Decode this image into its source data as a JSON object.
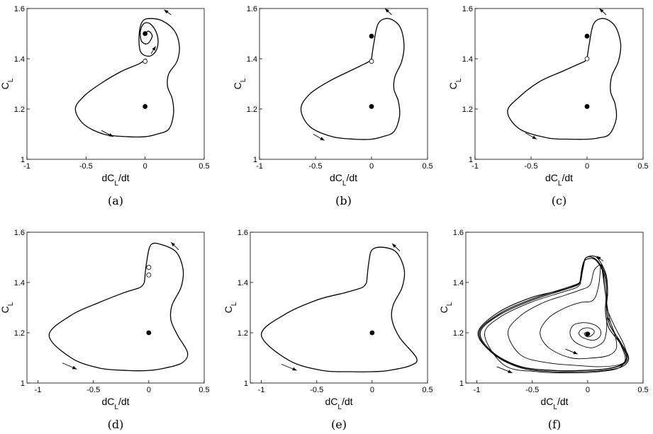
{
  "chart_data": [
    {
      "id": "a",
      "type": "line",
      "caption": "(a)",
      "xlabel": "dC",
      "xlabel_sub": "L",
      "xlabel_tail": "/dt",
      "ylabel": "C",
      "ylabel_sub": "L",
      "xlim": [
        -1,
        0.5
      ],
      "ylim": [
        1,
        1.6
      ],
      "xticks": [
        -1,
        -0.5,
        0,
        0.5
      ],
      "xtick_labels": [
        "-1",
        "-0.5",
        "0",
        "0.5"
      ],
      "yticks": [
        1,
        1.2,
        1.4,
        1.6
      ],
      "ytick_labels": [
        "1",
        "1.2",
        "1.4",
        "1.6"
      ],
      "series": [
        {
          "x": [
            0.0,
            0.03,
            0.06,
            0.02,
            -0.03,
            -0.04,
            -0.01,
            0.04,
            0.09,
            0.11,
            0.09,
            0.03,
            -0.04,
            -0.05,
            -0.02,
            0.05,
            0.15,
            0.25,
            0.29,
            0.27,
            0.2,
            0.19,
            0.23,
            0.24,
            0.2,
            0.1,
            0.0,
            -0.15,
            -0.35,
            -0.52,
            -0.59,
            -0.52,
            -0.38,
            -0.2,
            -0.05,
            0.01
          ],
          "y": [
            1.5,
            1.51,
            1.49,
            1.46,
            1.47,
            1.51,
            1.54,
            1.54,
            1.51,
            1.47,
            1.43,
            1.41,
            1.43,
            1.5,
            1.55,
            1.56,
            1.55,
            1.51,
            1.45,
            1.39,
            1.34,
            1.29,
            1.24,
            1.18,
            1.12,
            1.1,
            1.09,
            1.09,
            1.1,
            1.14,
            1.2,
            1.25,
            1.3,
            1.35,
            1.38,
            1.4
          ],
          "width": 1.3
        }
      ],
      "fixed_points": [
        {
          "x": 0,
          "y": 1.5,
          "filled": true
        },
        {
          "x": 0,
          "y": 1.39,
          "filled": false
        },
        {
          "x": 0,
          "y": 1.21,
          "filled": true
        }
      ],
      "arrows": [
        {
          "x1": -0.37,
          "y1": 1.115,
          "x2": -0.27,
          "y2": 1.09
        },
        {
          "x1": 0.22,
          "y1": 1.575,
          "x2": 0.16,
          "y2": 1.595
        },
        {
          "x1": 0.05,
          "y1": 1.42,
          "x2": 0.09,
          "y2": 1.45
        }
      ]
    },
    {
      "id": "b",
      "type": "line",
      "caption": "(b)",
      "xlabel": "dC",
      "xlabel_sub": "L",
      "xlabel_tail": "/dt",
      "ylabel": "C",
      "ylabel_sub": "L",
      "xlim": [
        -1,
        0.5
      ],
      "ylim": [
        1,
        1.6
      ],
      "xticks": [
        -1,
        -0.5,
        0,
        0.5
      ],
      "xtick_labels": [
        "-1",
        "-0.5",
        "0",
        "0.5"
      ],
      "yticks": [
        1,
        1.2,
        1.4,
        1.6
      ],
      "ytick_labels": [
        "1",
        "1.2",
        "1.4",
        "1.6"
      ],
      "series": [
        {
          "x": [
            0.0,
            0.02,
            0.06,
            0.15,
            0.25,
            0.29,
            0.27,
            0.21,
            0.2,
            0.24,
            0.25,
            0.2,
            0.1,
            0.0,
            -0.15,
            -0.35,
            -0.55,
            -0.63,
            -0.55,
            -0.38,
            -0.2,
            -0.06,
            -0.02,
            0.0
          ],
          "y": [
            1.4,
            1.46,
            1.54,
            1.56,
            1.53,
            1.46,
            1.39,
            1.33,
            1.28,
            1.23,
            1.17,
            1.11,
            1.09,
            1.08,
            1.08,
            1.09,
            1.13,
            1.2,
            1.26,
            1.31,
            1.35,
            1.38,
            1.39,
            1.4
          ],
          "width": 1.3
        }
      ],
      "fixed_points": [
        {
          "x": 0,
          "y": 1.49,
          "filled": true
        },
        {
          "x": 0,
          "y": 1.39,
          "filled": false
        },
        {
          "x": 0,
          "y": 1.21,
          "filled": true
        }
      ],
      "arrows": [
        {
          "x1": -0.52,
          "y1": 1.1,
          "x2": -0.42,
          "y2": 1.075
        },
        {
          "x1": 0.18,
          "y1": 1.575,
          "x2": 0.12,
          "y2": 1.6
        }
      ]
    },
    {
      "id": "c",
      "type": "line",
      "caption": "(c)",
      "xlabel": "dC",
      "xlabel_sub": "L",
      "xlabel_tail": "/dt",
      "ylabel": "C",
      "ylabel_sub": "L",
      "xlim": [
        -1,
        0.5
      ],
      "ylim": [
        1,
        1.6
      ],
      "xticks": [
        -1,
        -0.5,
        0,
        0.5
      ],
      "xtick_labels": [
        "-1",
        "-0.5",
        "0",
        "0.5"
      ],
      "yticks": [
        1,
        1.2,
        1.4,
        1.6
      ],
      "ytick_labels": [
        "1",
        "1.2",
        "1.4",
        "1.6"
      ],
      "series": [
        {
          "x": [
            0.0,
            0.02,
            0.06,
            0.15,
            0.25,
            0.3,
            0.28,
            0.22,
            0.21,
            0.25,
            0.26,
            0.2,
            0.1,
            0.0,
            -0.15,
            -0.35,
            -0.6,
            -0.71,
            -0.6,
            -0.42,
            -0.22,
            -0.07,
            -0.02,
            0.0
          ],
          "y": [
            1.4,
            1.46,
            1.54,
            1.56,
            1.53,
            1.46,
            1.39,
            1.33,
            1.27,
            1.22,
            1.16,
            1.1,
            1.085,
            1.08,
            1.08,
            1.085,
            1.12,
            1.19,
            1.25,
            1.31,
            1.35,
            1.38,
            1.39,
            1.4
          ],
          "width": 1.3
        }
      ],
      "fixed_points": [
        {
          "x": 0,
          "y": 1.49,
          "filled": true
        },
        {
          "x": 0,
          "y": 1.4,
          "filled": false
        },
        {
          "x": 0,
          "y": 1.21,
          "filled": true
        }
      ],
      "arrows": [
        {
          "x1": -0.55,
          "y1": 1.105,
          "x2": -0.45,
          "y2": 1.08
        },
        {
          "x1": 0.17,
          "y1": 1.575,
          "x2": 0.11,
          "y2": 1.6
        }
      ]
    },
    {
      "id": "d",
      "type": "line",
      "caption": "(d)",
      "xlabel": "dC",
      "xlabel_sub": "L",
      "xlabel_tail": "/dt",
      "ylabel": "C",
      "ylabel_sub": "L",
      "xlim": [
        -1.1,
        0.5
      ],
      "ylim": [
        1,
        1.6
      ],
      "xticks": [
        -1,
        -0.5,
        0,
        0.5
      ],
      "xtick_labels": [
        "-1",
        "-0.5",
        "0",
        "0.5"
      ],
      "yticks": [
        1,
        1.2,
        1.4,
        1.6
      ],
      "ytick_labels": [
        "1",
        "1.2",
        "1.4",
        "1.6"
      ],
      "series": [
        {
          "x": [
            -0.04,
            -0.02,
            0.02,
            0.12,
            0.25,
            0.31,
            0.29,
            0.21,
            0.2,
            0.26,
            0.35,
            0.3,
            0.15,
            0.0,
            -0.2,
            -0.45,
            -0.7,
            -0.9,
            -0.7,
            -0.45,
            -0.22,
            -0.08,
            -0.04
          ],
          "y": [
            1.4,
            1.48,
            1.55,
            1.55,
            1.52,
            1.45,
            1.38,
            1.31,
            1.25,
            1.19,
            1.12,
            1.08,
            1.06,
            1.05,
            1.05,
            1.06,
            1.1,
            1.19,
            1.27,
            1.32,
            1.36,
            1.38,
            1.4
          ],
          "width": 1.3
        }
      ],
      "fixed_points": [
        {
          "x": 0,
          "y": 1.46,
          "filled": false
        },
        {
          "x": 0,
          "y": 1.43,
          "filled": false
        },
        {
          "x": 0,
          "y": 1.2,
          "filled": true
        }
      ],
      "arrows": [
        {
          "x1": -0.78,
          "y1": 1.08,
          "x2": -0.65,
          "y2": 1.055
        },
        {
          "x1": 0.27,
          "y1": 1.53,
          "x2": 0.2,
          "y2": 1.56
        }
      ]
    },
    {
      "id": "e",
      "type": "line",
      "caption": "(e)",
      "xlabel": "dC",
      "xlabel_sub": "L",
      "xlabel_tail": "/dt",
      "ylabel": "C",
      "ylabel_sub": "L",
      "xlim": [
        -1.1,
        0.5
      ],
      "ylim": [
        1,
        1.6
      ],
      "xticks": [
        -1,
        -0.5,
        0,
        0.5
      ],
      "xtick_labels": [
        "-1",
        "-0.5",
        "0",
        "0.5"
      ],
      "yticks": [
        1,
        1.2,
        1.4,
        1.6
      ],
      "ytick_labels": [
        "1",
        "1.2",
        "1.4",
        "1.6"
      ],
      "series": [
        {
          "x": [
            -0.05,
            -0.03,
            0.0,
            0.1,
            0.22,
            0.29,
            0.27,
            0.19,
            0.18,
            0.25,
            0.4,
            0.35,
            0.15,
            0.0,
            -0.2,
            -0.45,
            -0.75,
            -1.0,
            -0.8,
            -0.5,
            -0.24,
            -0.09,
            -0.05
          ],
          "y": [
            1.4,
            1.48,
            1.53,
            1.54,
            1.52,
            1.45,
            1.38,
            1.31,
            1.25,
            1.18,
            1.1,
            1.07,
            1.05,
            1.045,
            1.045,
            1.05,
            1.09,
            1.19,
            1.27,
            1.33,
            1.36,
            1.38,
            1.4
          ],
          "width": 1.3
        }
      ],
      "fixed_points": [
        {
          "x": 0,
          "y": 1.2,
          "filled": true
        }
      ],
      "arrows": [
        {
          "x1": -0.82,
          "y1": 1.075,
          "x2": -0.68,
          "y2": 1.05
        },
        {
          "x1": 0.25,
          "y1": 1.525,
          "x2": 0.18,
          "y2": 1.555
        }
      ]
    },
    {
      "id": "f",
      "type": "line",
      "caption": "(f)",
      "xlabel": "dC",
      "xlabel_sub": "L",
      "xlabel_tail": "/dt",
      "ylabel": "C",
      "ylabel_sub": "L",
      "xlim": [
        -1.1,
        0.5
      ],
      "ylim": [
        1,
        1.6
      ],
      "xticks": [
        -1,
        -0.5,
        0,
        0.5
      ],
      "xtick_labels": [
        "-1",
        "-0.5",
        "0",
        "0.5"
      ],
      "yticks": [
        1,
        1.2,
        1.4,
        1.6
      ],
      "ytick_labels": [
        "1",
        "1.2",
        "1.4",
        "1.6"
      ],
      "series": [
        {
          "x": [
            -0.06,
            -0.04,
            -0.01,
            0.08,
            0.16,
            0.18,
            0.17,
            0.2,
            0.3,
            0.36,
            0.3,
            0.15,
            -0.05,
            -0.3,
            -0.6,
            -0.85,
            -0.97,
            -0.8,
            -0.5,
            -0.22,
            -0.09,
            -0.06
          ],
          "y": [
            1.41,
            1.47,
            1.5,
            1.5,
            1.44,
            1.37,
            1.3,
            1.23,
            1.16,
            1.1,
            1.07,
            1.055,
            1.05,
            1.05,
            1.065,
            1.12,
            1.2,
            1.27,
            1.33,
            1.37,
            1.39,
            1.41
          ],
          "width": 1.1
        },
        {
          "x": [
            -0.06,
            -0.04,
            -0.01,
            0.08,
            0.16,
            0.18,
            0.17,
            0.2,
            0.3,
            0.37,
            0.31,
            0.15,
            -0.05,
            -0.3,
            -0.6,
            -0.85,
            -0.98,
            -0.8,
            -0.5,
            -0.22,
            -0.09,
            -0.06
          ],
          "y": [
            1.41,
            1.46,
            1.5,
            1.49,
            1.43,
            1.36,
            1.3,
            1.23,
            1.16,
            1.1,
            1.065,
            1.05,
            1.045,
            1.045,
            1.06,
            1.115,
            1.2,
            1.275,
            1.335,
            1.375,
            1.395,
            1.41
          ],
          "width": 1.1
        },
        {
          "x": [
            -0.07,
            -0.05,
            -0.02,
            0.07,
            0.15,
            0.17,
            0.16,
            0.19,
            0.29,
            0.35,
            0.29,
            0.14,
            -0.06,
            -0.31,
            -0.61,
            -0.86,
            -0.99,
            -0.81,
            -0.51,
            -0.23,
            -0.1,
            -0.07
          ],
          "y": [
            1.4,
            1.46,
            1.49,
            1.49,
            1.43,
            1.36,
            1.29,
            1.22,
            1.16,
            1.1,
            1.07,
            1.055,
            1.05,
            1.05,
            1.065,
            1.12,
            1.2,
            1.28,
            1.34,
            1.37,
            1.39,
            1.4
          ],
          "width": 1.1
        },
        {
          "x": [
            0.0,
            -0.02,
            -0.03,
            -0.01,
            0.02,
            0.05,
            0.06,
            0.04,
            0.0,
            -0.05,
            -0.08,
            -0.06,
            -0.01,
            0.05,
            0.1,
            0.12,
            0.1,
            0.04,
            -0.05,
            -0.13,
            -0.16,
            -0.13,
            -0.06,
            0.03,
            0.1,
            0.15,
            0.17,
            0.18,
            0.24,
            0.26,
            0.19,
            0.05,
            -0.15,
            -0.35,
            -0.43,
            -0.35,
            -0.2,
            -0.07,
            0.05,
            0.1,
            0.12,
            0.14,
            0.2,
            0.3,
            0.34,
            0.3,
            0.12,
            -0.1,
            -0.35,
            -0.6,
            -0.72,
            -0.6,
            -0.4,
            -0.2,
            -0.07,
            0.02,
            0.06,
            0.12,
            0.14,
            0.16,
            0.18,
            0.25,
            0.33,
            0.35,
            0.28,
            0.1,
            -0.15,
            -0.45,
            -0.75,
            -0.93,
            -0.8,
            -0.52,
            -0.24,
            -0.1,
            -0.06
          ],
          "y": [
            1.195,
            1.2,
            1.195,
            1.185,
            1.185,
            1.195,
            1.205,
            1.215,
            1.22,
            1.215,
            1.2,
            1.185,
            1.175,
            1.17,
            1.18,
            1.2,
            1.22,
            1.235,
            1.24,
            1.23,
            1.2,
            1.17,
            1.15,
            1.14,
            1.15,
            1.17,
            1.21,
            1.26,
            1.2,
            1.14,
            1.11,
            1.1,
            1.1,
            1.14,
            1.2,
            1.26,
            1.3,
            1.32,
            1.33,
            1.39,
            1.47,
            1.42,
            1.25,
            1.15,
            1.1,
            1.075,
            1.065,
            1.07,
            1.08,
            1.11,
            1.2,
            1.27,
            1.32,
            1.35,
            1.37,
            1.39,
            1.45,
            1.47,
            1.44,
            1.36,
            1.29,
            1.22,
            1.15,
            1.1,
            1.06,
            1.045,
            1.04,
            1.045,
            1.07,
            1.19,
            1.26,
            1.32,
            1.36,
            1.38,
            1.4
          ],
          "width": 0.9
        }
      ],
      "fixed_points": [
        {
          "x": 0,
          "y": 1.195,
          "filled": true
        }
      ],
      "arrows": [
        {
          "x1": -0.82,
          "y1": 1.065,
          "x2": -0.68,
          "y2": 1.04
        },
        {
          "x1": -0.2,
          "y1": 1.135,
          "x2": -0.09,
          "y2": 1.115
        },
        {
          "x1": 0.14,
          "y1": 1.485,
          "x2": 0.08,
          "y2": 1.505
        }
      ]
    }
  ]
}
